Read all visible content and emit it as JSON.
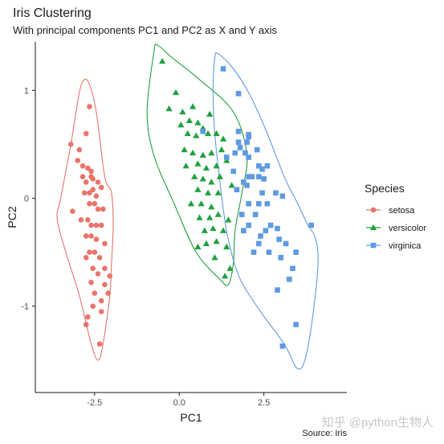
{
  "chart_data": {
    "type": "scatter",
    "title": "Iris Clustering",
    "subtitle": "With principal components PC1 and PC2 as X and Y axis",
    "xlabel": "PC1",
    "ylabel": "PC2",
    "xlim": [
      -4.25,
      4.95
    ],
    "ylim": [
      -1.8,
      1.45
    ],
    "x_ticks": [
      -2.5,
      0.0,
      2.5
    ],
    "x_tick_labels": [
      "-2.5",
      "0.0",
      "2.5"
    ],
    "y_ticks": [
      -1,
      0,
      1
    ],
    "y_tick_labels": [
      "-1",
      "0",
      "1"
    ],
    "grid": false,
    "legend": {
      "title": "Species",
      "position": "right"
    },
    "caption": "Source: Iris",
    "watermark": "知乎 @python生物人",
    "series": [
      {
        "name": "setosa",
        "marker": "circle",
        "color": "#E8746B",
        "points": [
          [
            -3.2,
            0.5
          ],
          [
            -2.95,
            0.45
          ],
          [
            -2.65,
            0.85
          ],
          [
            -2.75,
            0.6
          ],
          [
            -3.0,
            0.35
          ],
          [
            -2.85,
            0.3
          ],
          [
            -2.7,
            0.28
          ],
          [
            -2.6,
            0.2
          ],
          [
            -2.75,
            0.15
          ],
          [
            -2.55,
            0.18
          ],
          [
            -2.4,
            0.15
          ],
          [
            -2.65,
            0.05
          ],
          [
            -2.8,
            0.05
          ],
          [
            -2.55,
            0.08
          ],
          [
            -2.45,
            0.02
          ],
          [
            -2.3,
            0.1
          ],
          [
            -2.5,
            -0.05
          ],
          [
            -2.65,
            -0.05
          ],
          [
            -2.4,
            -0.1
          ],
          [
            -2.25,
            -0.1
          ],
          [
            -3.15,
            -0.12
          ],
          [
            -2.9,
            -0.2
          ],
          [
            -2.7,
            -0.2
          ],
          [
            -2.6,
            -0.25
          ],
          [
            -2.45,
            -0.25
          ],
          [
            -2.3,
            -0.25
          ],
          [
            -2.75,
            -0.35
          ],
          [
            -2.6,
            -0.35
          ],
          [
            -2.45,
            -0.38
          ],
          [
            -2.2,
            -0.42
          ],
          [
            -2.65,
            -0.5
          ],
          [
            -2.5,
            -0.5
          ],
          [
            -2.35,
            -0.55
          ],
          [
            -2.75,
            -0.55
          ],
          [
            -2.55,
            -0.65
          ],
          [
            -2.4,
            -0.7
          ],
          [
            -2.6,
            -0.78
          ],
          [
            -2.5,
            -0.88
          ],
          [
            -2.3,
            -0.95
          ],
          [
            -2.55,
            -1.0
          ],
          [
            -2.3,
            -1.05
          ],
          [
            -2.1,
            -0.88
          ],
          [
            -2.2,
            -0.8
          ],
          [
            -2.05,
            -0.72
          ],
          [
            -2.2,
            -0.65
          ],
          [
            -2.7,
            -1.1
          ],
          [
            -2.75,
            -1.17
          ],
          [
            -2.35,
            -1.35
          ],
          [
            -2.6,
            0.25
          ],
          [
            -2.85,
            0.2
          ]
        ],
        "outline": [
          [
            -2.8,
            1.1
          ],
          [
            -2.95,
            0.98
          ],
          [
            -3.2,
            0.5
          ],
          [
            -3.5,
            0.0
          ],
          [
            -3.6,
            -0.2
          ],
          [
            -3.3,
            -0.55
          ],
          [
            -2.95,
            -0.9
          ],
          [
            -2.6,
            -1.35
          ],
          [
            -2.4,
            -1.5
          ],
          [
            -2.25,
            -1.35
          ],
          [
            -2.05,
            -0.9
          ],
          [
            -2.0,
            -0.6
          ],
          [
            -1.95,
            -0.25
          ],
          [
            -2.0,
            0.05
          ],
          [
            -2.2,
            0.2
          ],
          [
            -2.45,
            0.8
          ],
          [
            -2.65,
            1.05
          ]
        ]
      },
      {
        "name": "versicolor",
        "marker": "triangle",
        "color": "#1FA03F",
        "points": [
          [
            -0.5,
            1.27
          ],
          [
            -0.1,
            0.98
          ],
          [
            -0.3,
            0.83
          ],
          [
            0.4,
            0.85
          ],
          [
            0.1,
            0.8
          ],
          [
            0.9,
            0.78
          ],
          [
            0.3,
            0.72
          ],
          [
            0.55,
            0.7
          ],
          [
            0.05,
            0.68
          ],
          [
            0.7,
            0.65
          ],
          [
            0.25,
            0.6
          ],
          [
            0.5,
            0.58
          ],
          [
            0.85,
            0.6
          ],
          [
            1.1,
            0.6
          ],
          [
            1.3,
            0.55
          ],
          [
            0.15,
            0.45
          ],
          [
            0.4,
            0.42
          ],
          [
            0.7,
            0.4
          ],
          [
            0.95,
            0.42
          ],
          [
            1.25,
            0.45
          ],
          [
            0.2,
            0.3
          ],
          [
            0.55,
            0.32
          ],
          [
            0.8,
            0.28
          ],
          [
            1.1,
            0.3
          ],
          [
            1.4,
            0.35
          ],
          [
            0.45,
            0.2
          ],
          [
            0.7,
            0.18
          ],
          [
            0.95,
            0.15
          ],
          [
            1.2,
            0.2
          ],
          [
            0.55,
            0.08
          ],
          [
            0.85,
            0.05
          ],
          [
            1.15,
            0.05
          ],
          [
            1.55,
            0.12
          ],
          [
            0.35,
            -0.05
          ],
          [
            0.65,
            -0.05
          ],
          [
            0.95,
            -0.08
          ],
          [
            0.6,
            -0.18
          ],
          [
            0.9,
            -0.18
          ],
          [
            1.15,
            -0.15
          ],
          [
            1.45,
            -0.2
          ],
          [
            0.75,
            -0.3
          ],
          [
            1.0,
            -0.28
          ],
          [
            1.3,
            -0.3
          ],
          [
            0.8,
            -0.42
          ],
          [
            1.1,
            -0.4
          ],
          [
            1.4,
            -0.45
          ],
          [
            0.55,
            -0.45
          ],
          [
            1.05,
            -0.55
          ],
          [
            1.5,
            -0.65
          ],
          [
            1.35,
            -0.72
          ]
        ],
        "outline": [
          [
            -0.65,
            1.42
          ],
          [
            -0.75,
            1.35
          ],
          [
            -0.95,
            0.8
          ],
          [
            -0.75,
            0.4
          ],
          [
            -0.15,
            -0.05
          ],
          [
            0.5,
            -0.5
          ],
          [
            1.2,
            -0.75
          ],
          [
            1.45,
            -0.8
          ],
          [
            1.6,
            -0.6
          ],
          [
            1.65,
            -0.3
          ],
          [
            1.85,
            0.05
          ],
          [
            2.0,
            0.4
          ],
          [
            1.6,
            0.8
          ],
          [
            0.6,
            1.1
          ],
          [
            -0.2,
            1.3
          ]
        ]
      },
      {
        "name": "virginica",
        "marker": "square",
        "color": "#5F9AE0",
        "points": [
          [
            1.3,
            1.2
          ],
          [
            1.75,
            0.97
          ],
          [
            0.7,
            0.62
          ],
          [
            1.75,
            0.62
          ],
          [
            2.05,
            0.59
          ],
          [
            2.05,
            0.57
          ],
          [
            1.75,
            0.52
          ],
          [
            2.0,
            0.52
          ],
          [
            2.3,
            0.45
          ],
          [
            1.8,
            0.47
          ],
          [
            1.95,
            0.42
          ],
          [
            1.4,
            0.38
          ],
          [
            1.65,
            0.42
          ],
          [
            2.05,
            0.38
          ],
          [
            2.35,
            0.3
          ],
          [
            2.6,
            0.3
          ],
          [
            2.45,
            0.27
          ],
          [
            1.6,
            0.25
          ],
          [
            2.05,
            0.2
          ],
          [
            2.15,
            0.2
          ],
          [
            2.35,
            0.2
          ],
          [
            2.5,
            0.18
          ],
          [
            1.9,
            0.15
          ],
          [
            2.0,
            0.12
          ],
          [
            1.7,
            0.08
          ],
          [
            2.45,
            0.05
          ],
          [
            2.85,
            0.05
          ],
          [
            3.05,
            0.02
          ],
          [
            2.05,
            -0.05
          ],
          [
            2.35,
            -0.05
          ],
          [
            2.6,
            -0.05
          ],
          [
            1.85,
            -0.15
          ],
          [
            2.25,
            -0.15
          ],
          [
            2.05,
            -0.25
          ],
          [
            2.7,
            -0.25
          ],
          [
            2.9,
            -0.28
          ],
          [
            1.9,
            -0.3
          ],
          [
            2.4,
            -0.35
          ],
          [
            2.55,
            -0.3
          ],
          [
            2.95,
            -0.38
          ],
          [
            2.35,
            -0.42
          ],
          [
            3.15,
            -0.42
          ],
          [
            2.2,
            -0.5
          ],
          [
            2.65,
            -0.5
          ],
          [
            3.0,
            -0.55
          ],
          [
            3.35,
            -0.65
          ],
          [
            3.45,
            -0.5
          ],
          [
            3.25,
            -0.75
          ],
          [
            3.9,
            -0.25
          ],
          [
            2.9,
            -0.85
          ],
          [
            3.45,
            -1.17
          ],
          [
            3.05,
            -1.37
          ]
        ],
        "outline": [
          [
            1.15,
            1.34
          ],
          [
            1.6,
            1.2
          ],
          [
            2.1,
            0.95
          ],
          [
            2.6,
            0.6
          ],
          [
            3.1,
            0.2
          ],
          [
            3.5,
            -0.05
          ],
          [
            3.8,
            -0.25
          ],
          [
            4.0,
            -0.35
          ],
          [
            4.1,
            -0.55
          ],
          [
            4.0,
            -0.95
          ],
          [
            3.75,
            -1.45
          ],
          [
            3.5,
            -1.58
          ],
          [
            3.1,
            -1.35
          ],
          [
            2.4,
            -1.05
          ],
          [
            1.8,
            -0.75
          ],
          [
            1.5,
            -0.45
          ],
          [
            1.3,
            -0.1
          ],
          [
            1.05,
            0.6
          ],
          [
            1.0,
            1.0
          ],
          [
            1.05,
            1.3
          ]
        ]
      }
    ]
  }
}
